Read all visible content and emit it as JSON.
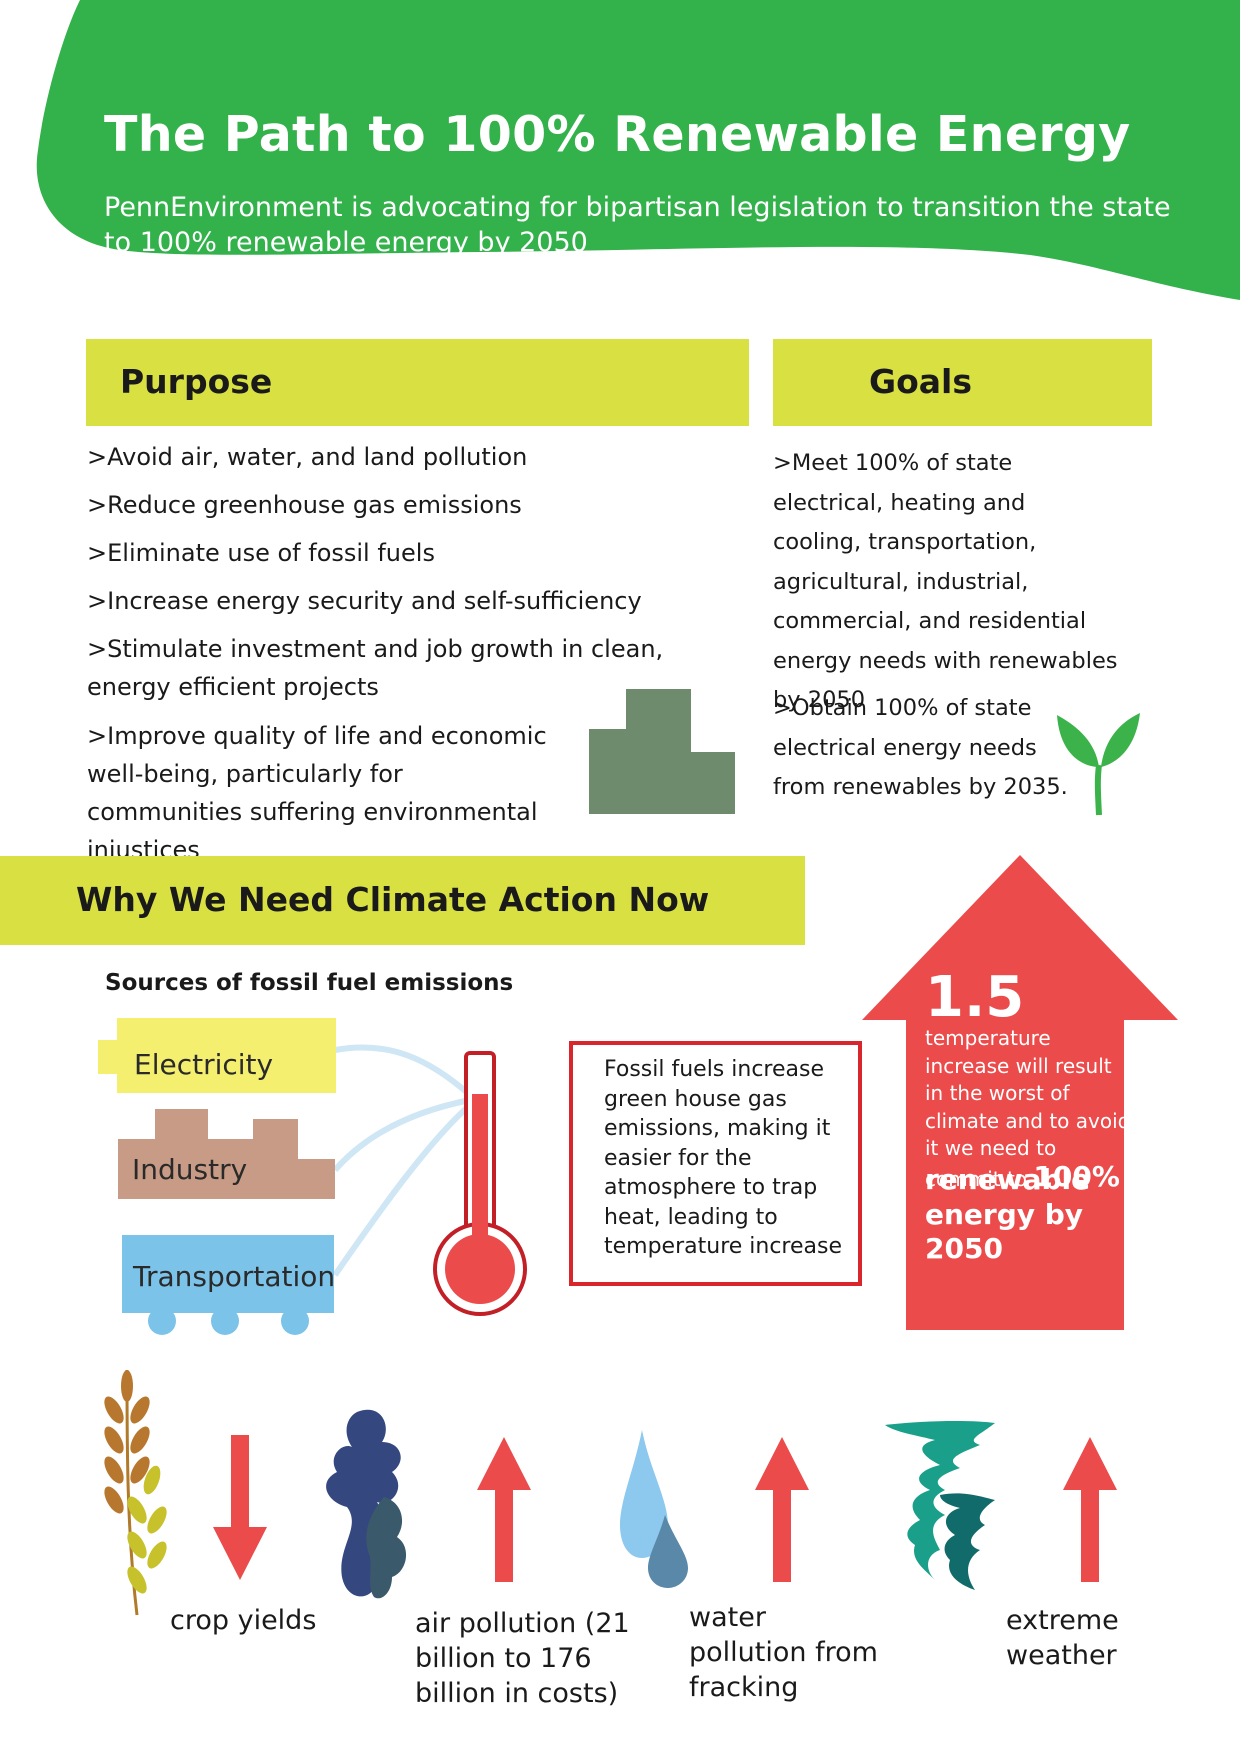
{
  "header": {
    "title": "The Path to 100% Renewable Energy",
    "subtitle": "PennEnvironment is advocating for bipartisan legislation to transition the state to 100% renewable energy by 2050"
  },
  "purpose": {
    "heading": "Purpose",
    "items": [
      ">Avoid air, water, and land pollution",
      ">Reduce greenhouse gas emissions",
      ">Eliminate use of fossil fuels",
      ">Increase energy security and self-sufficiency",
      ">Stimulate investment and job growth in clean, energy efficient projects",
      ">Improve quality of life and economic well-being, particularly for communities suffering environmental injustices"
    ]
  },
  "goals": {
    "heading": "Goals",
    "items": [
      ">Meet 100% of state electrical, heating and cooling, transportation, agricultural, industrial, commercial, and residential energy needs with renewables by 2050",
      ">Obtain 100% of state electrical energy needs from renewables by 2035."
    ]
  },
  "climate": {
    "heading": "Why We Need Climate Action Now",
    "sources_title": "Sources of fossil fuel emissions",
    "sources": [
      "Electricity",
      "Industry",
      "Transportation"
    ],
    "fossil_text": "Fossil fuels increase green house gas emissions, making it easier for the atmosphere to trap heat, leading to temperature increase",
    "arrow_number": "1.5",
    "arrow_text": "temperature increase will result in the worst of climate and to avoid it we need to commit to",
    "arrow_bold_lead": "100%",
    "arrow_bold_rest": "renewable energy by 2050"
  },
  "impacts": [
    {
      "label": "crop yields",
      "direction": "down",
      "icon": "wheat-icon"
    },
    {
      "label": "air pollution (21 billion to 176 billion in costs)",
      "direction": "up",
      "icon": "smog-icon"
    },
    {
      "label": "water pollution from fracking",
      "direction": "up",
      "icon": "water-drop-icon"
    },
    {
      "label": "extreme weather",
      "direction": "up",
      "icon": "tornado-icon"
    }
  ],
  "colors": {
    "green": "#33b14b",
    "yellow_band": "#d9e142",
    "red": "#ec4b4b",
    "electricity": "#f5ef6f",
    "industry": "#c79b85",
    "transportation": "#7cc3ea"
  }
}
